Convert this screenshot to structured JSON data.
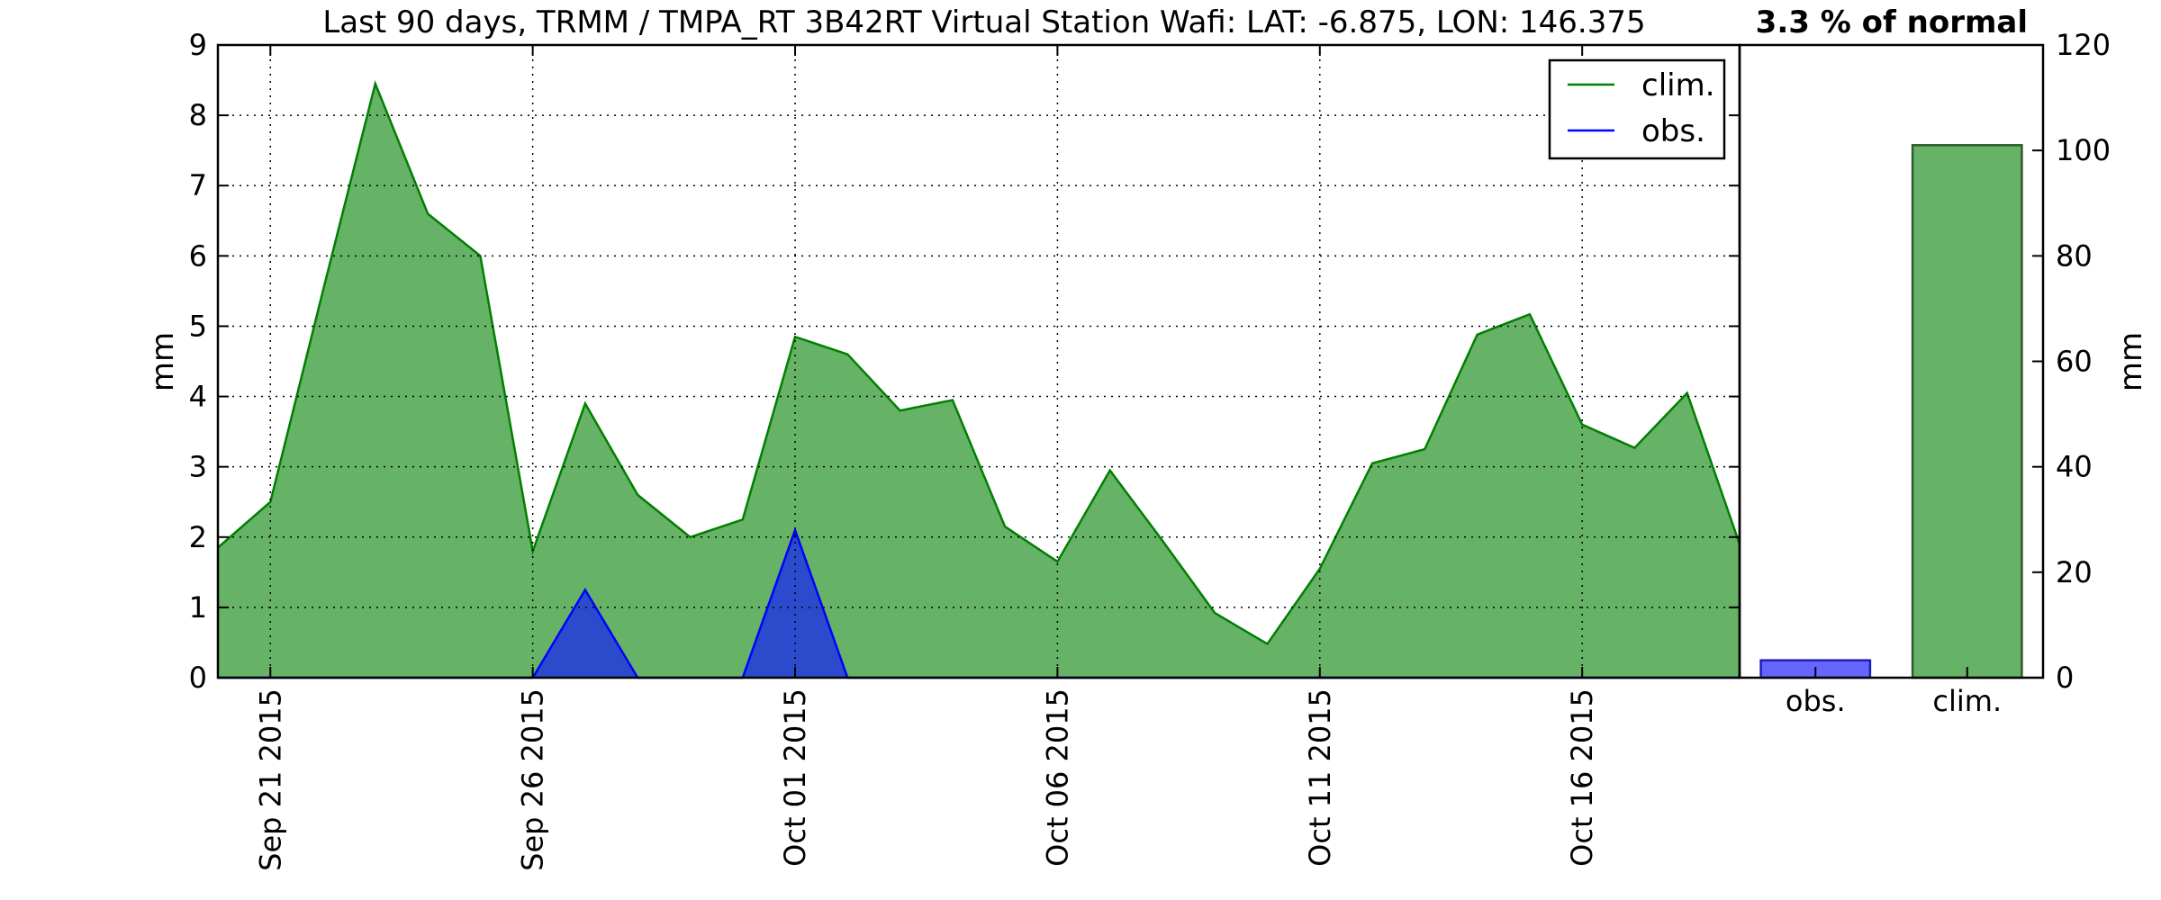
{
  "chart_data": [
    {
      "type": "area",
      "title": "Last 90 days, TRMM / TMPA_RT 3B42RT Virtual Station Wafi: LAT: -6.875, LON: 146.375",
      "ylabel": "mm",
      "xlabel": "",
      "ylim": [
        0,
        9
      ],
      "yticks": [
        "0",
        "1",
        "2",
        "3",
        "4",
        "5",
        "6",
        "7",
        "8",
        "9"
      ],
      "xticks": [
        {
          "date": "2015-09-21",
          "label": "Sep 21 2015"
        },
        {
          "date": "2015-09-26",
          "label": "Sep 26 2015"
        },
        {
          "date": "2015-10-01",
          "label": "Oct 01 2015"
        },
        {
          "date": "2015-10-06",
          "label": "Oct 06 2015"
        },
        {
          "date": "2015-10-11",
          "label": "Oct 11 2015"
        },
        {
          "date": "2015-10-16",
          "label": "Oct 16 2015"
        }
      ],
      "xlim": [
        "2015-09-20",
        "2015-10-19"
      ],
      "grid": true,
      "legend": "top-right",
      "x": [
        "2015-09-20",
        "2015-09-21",
        "2015-09-22",
        "2015-09-23",
        "2015-09-24",
        "2015-09-25",
        "2015-09-26",
        "2015-09-27",
        "2015-09-28",
        "2015-09-29",
        "2015-09-30",
        "2015-10-01",
        "2015-10-02",
        "2015-10-03",
        "2015-10-04",
        "2015-10-05",
        "2015-10-06",
        "2015-10-07",
        "2015-10-08",
        "2015-10-09",
        "2015-10-10",
        "2015-10-11",
        "2015-10-12",
        "2015-10-13",
        "2015-10-14",
        "2015-10-15",
        "2015-10-16",
        "2015-10-17",
        "2015-10-18",
        "2015-10-19"
      ],
      "series": [
        {
          "name": "clim.",
          "line_color": "#008000",
          "fill_color": "#66b266",
          "values": [
            1.85,
            2.5,
            5.5,
            8.45,
            6.6,
            6.0,
            1.8,
            3.9,
            2.6,
            2.0,
            2.25,
            4.85,
            4.6,
            3.8,
            3.95,
            2.15,
            1.65,
            2.95,
            1.95,
            0.92,
            0.48,
            1.55,
            3.05,
            3.25,
            4.88,
            5.17,
            3.6,
            3.27,
            4.05,
            1.9
          ]
        },
        {
          "name": "obs.",
          "line_color": "#0000ff",
          "fill_color": "#2b4bcc",
          "values": [
            0,
            0,
            0,
            0,
            0,
            0,
            0,
            1.25,
            0,
            0,
            0,
            2.1,
            0,
            0,
            0,
            0,
            0,
            0,
            0,
            0,
            0,
            0,
            0,
            0,
            0,
            0,
            0,
            0,
            0,
            0
          ]
        }
      ]
    },
    {
      "type": "bar",
      "title": "3.3 % of normal",
      "ylabel": "mm",
      "ylim": [
        0,
        120
      ],
      "yticks": [
        "0",
        "20",
        "40",
        "60",
        "80",
        "100",
        "120"
      ],
      "categories": [
        "obs.",
        "clim."
      ],
      "values": [
        3.3,
        101
      ],
      "colors": [
        "#6666ff",
        "#66b266"
      ],
      "edge_colors": [
        "#1f1fb3",
        "#2e5a2e"
      ]
    }
  ]
}
